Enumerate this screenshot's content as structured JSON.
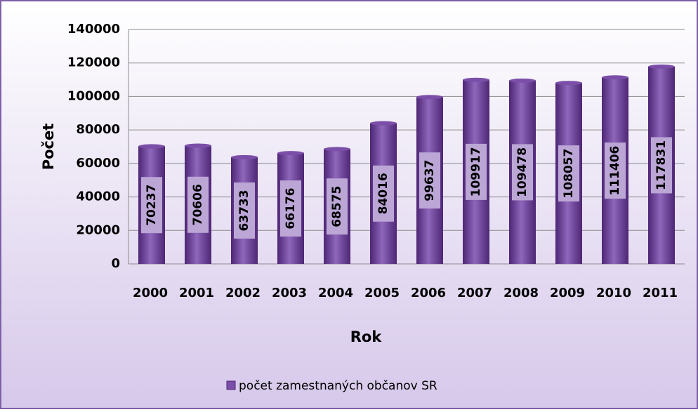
{
  "chart_data": {
    "type": "bar",
    "categories": [
      "2000",
      "2001",
      "2002",
      "2003",
      "2004",
      "2005",
      "2006",
      "2007",
      "2008",
      "2009",
      "2010",
      "2011"
    ],
    "series": [
      {
        "name": "počet zamestnaných občanov SR",
        "color": "#7b4fa8",
        "values": [
          70237,
          70606,
          63733,
          66176,
          68575,
          84016,
          99637,
          109917,
          109478,
          108057,
          111406,
          117831
        ]
      }
    ],
    "x_label": "Rok",
    "y_label": "Počet",
    "ylim": [
      0,
      140000
    ],
    "yticks": [
      0,
      20000,
      40000,
      60000,
      80000,
      100000,
      120000,
      140000
    ],
    "grid": true,
    "legend": "bottom"
  }
}
